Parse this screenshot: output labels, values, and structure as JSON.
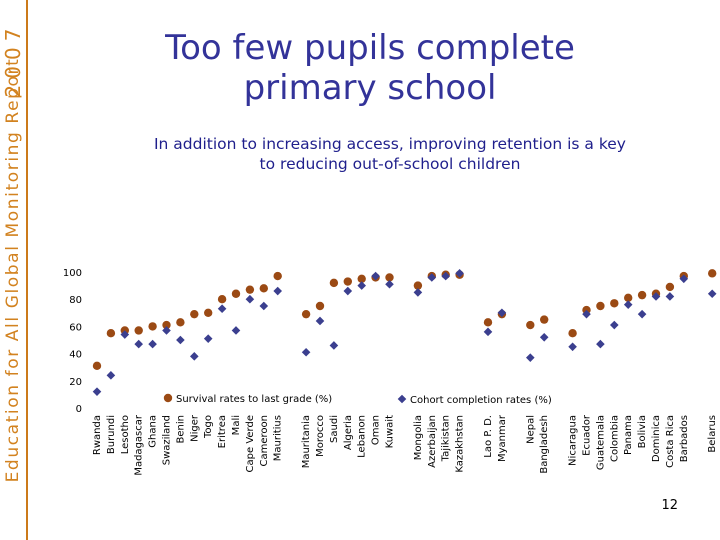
{
  "sidebar": {
    "series_label": "Education for All Global Monitoring Report",
    "year": "2007"
  },
  "slide": {
    "title_line1": "Too few pupils complete",
    "title_line2": "primary school",
    "subtitle_line1": "In addition to increasing access, improving retention is a key",
    "subtitle_line2": "to reducing out-of-school children",
    "page_number": "12"
  },
  "colors": {
    "survival": "#9b4a14",
    "cohort": "#3b3f8f",
    "title": "#333399",
    "band": "#d2821f"
  },
  "chart_data": {
    "type": "scatter",
    "title": "",
    "ylim": [
      0,
      100
    ],
    "yticks": [
      0,
      20,
      40,
      60,
      80,
      100
    ],
    "grid": false,
    "categories": [
      "Rwanda",
      "Burundi",
      "Lesotho",
      "Madagascar",
      "Ghana",
      "Swaziland",
      "Benin",
      "Niger",
      "Togo",
      "Eritrea",
      "Mali",
      "Cape Verde",
      "Cameroon",
      "Mauritius",
      "Mauritania",
      "Morocco",
      "Saudi",
      "Algeria",
      "Lebanon",
      "Oman",
      "Kuwait",
      "Mongolia",
      "Azerbaijan",
      "Tajikistan",
      "Kazakhstan",
      "Lao P. D.",
      "Myanmar",
      "Nepal",
      "Bangladesh",
      "Nicaragua",
      "Ecuador",
      "Guatemala",
      "Colombia",
      "Panama",
      "Bolivia",
      "Dominica",
      "Costa Rica",
      "Barbados",
      "Belarus"
    ],
    "groups": [
      14,
      7,
      4,
      2,
      2,
      9,
      1
    ],
    "series": [
      {
        "name": "Survival rates to last grade (%)",
        "marker": "circle",
        "values": [
          31,
          55,
          57,
          57,
          60,
          61,
          63,
          69,
          70,
          80,
          84,
          87,
          88,
          97,
          69,
          75,
          92,
          93,
          95,
          96,
          96,
          90,
          97,
          98,
          98,
          63,
          69,
          61,
          65,
          55,
          72,
          75,
          77,
          81,
          83,
          84,
          89,
          97,
          99
        ]
      },
      {
        "name": "Cohort completion rates (%)",
        "marker": "diamond",
        "values": [
          12,
          24,
          54,
          47,
          47,
          57,
          50,
          38,
          51,
          73,
          57,
          80,
          75,
          86,
          41,
          64,
          46,
          86,
          90,
          97,
          91,
          85,
          96,
          97,
          99,
          56,
          70,
          37,
          52,
          45,
          69,
          47,
          61,
          76,
          69,
          82,
          82,
          95,
          84
        ]
      }
    ]
  }
}
